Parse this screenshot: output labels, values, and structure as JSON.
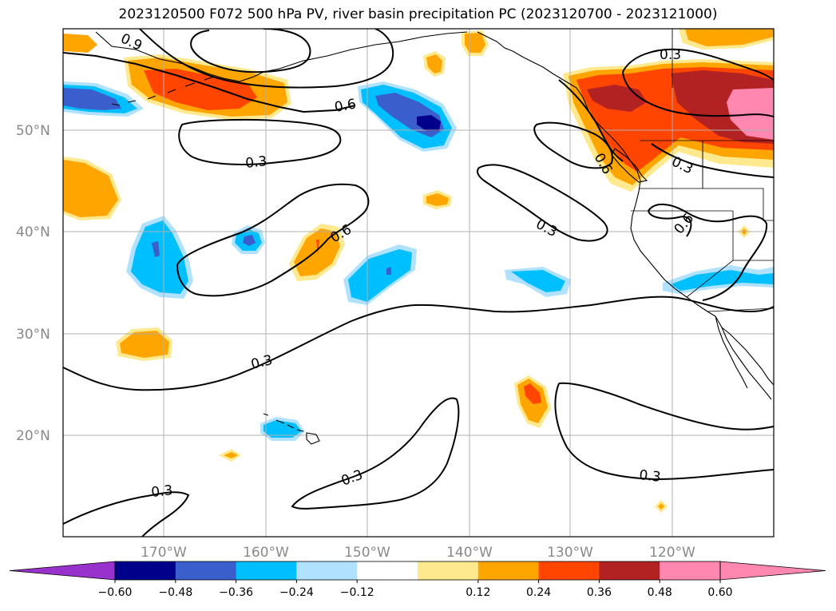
{
  "title": "2023120500 F072 500 hPa PV, river basin precipitation PC (2023120700 - 2023121000)",
  "latitude_labels": [
    "50°N",
    "40°N",
    "30°N",
    "20°N"
  ],
  "longitude_labels": [
    "170°W",
    "160°W",
    "150°W",
    "140°W",
    "130°W",
    "120°W"
  ],
  "contour_labels": {
    "c1": "0.9",
    "c2": "0.6",
    "c3": "0.3",
    "c4": "0.6",
    "c5": "0.3",
    "c6": "0.3",
    "c7": "0.3",
    "c8": "0.3",
    "c9": "0.3",
    "c10": "0.6",
    "c11": "0.6",
    "c12": "0.3",
    "c13": "0.3"
  },
  "colorbar": {
    "ticks": [
      "−0.60",
      "−0.48",
      "−0.36",
      "−0.24",
      "−0.12",
      "0.12",
      "0.24",
      "0.36",
      "0.48",
      "0.60"
    ],
    "colors": [
      "#9932cc",
      "#00008b",
      "#3a5fcd",
      "#00bfff",
      "#b0e2ff",
      "#ffffff",
      "#fee98e",
      "#ffa500",
      "#ff4500",
      "#b22222",
      "#ff87b0",
      "#ff87b0"
    ]
  },
  "map": {
    "extent": {
      "lon_min": -180,
      "lon_max": -110,
      "lat_min": 10,
      "lat_max": 60
    },
    "contour_field": "500 hPa PV",
    "shaded_field": "river basin precipitation PC"
  }
}
